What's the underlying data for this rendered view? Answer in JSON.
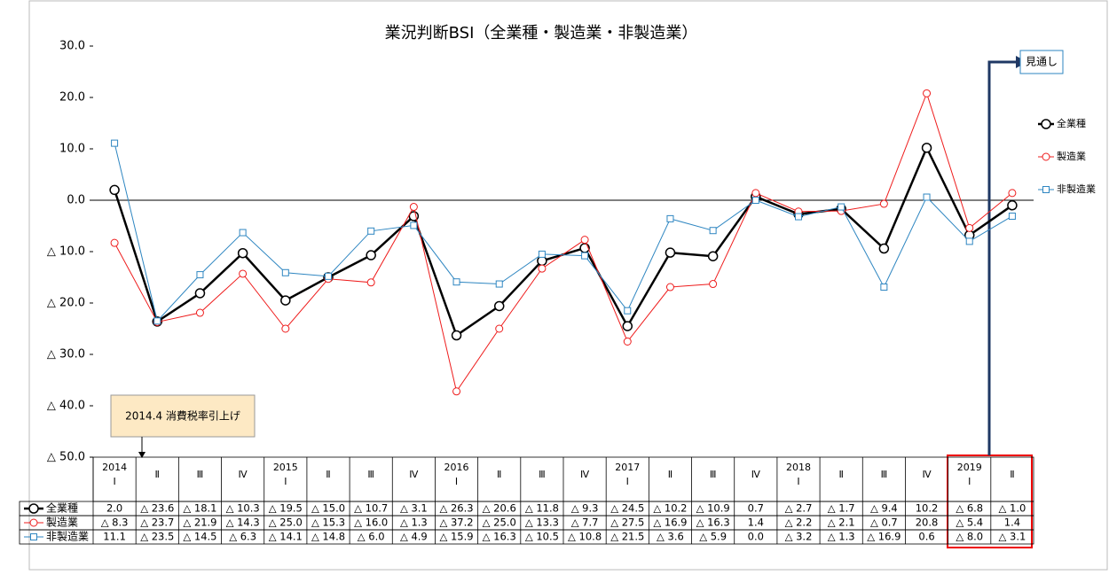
{
  "chart_data": {
    "type": "line",
    "title": "業況判断BSI（全業種・製造業・非製造業）",
    "years": [
      "2014",
      null,
      null,
      null,
      "2015",
      null,
      null,
      null,
      "2016",
      null,
      null,
      null,
      "2017",
      null,
      null,
      null,
      "2018",
      null,
      null,
      null,
      "2019",
      null
    ],
    "categories": [
      "I",
      "Ⅱ",
      "Ⅲ",
      "Ⅳ",
      "I",
      "Ⅱ",
      "Ⅲ",
      "Ⅳ",
      "I",
      "Ⅱ",
      "Ⅲ",
      "Ⅳ",
      "I",
      "Ⅱ",
      "Ⅲ",
      "Ⅳ",
      "I",
      "Ⅱ",
      "Ⅲ",
      "Ⅳ",
      "I",
      "Ⅱ"
    ],
    "series": [
      {
        "name": "全業種",
        "color": "#000000",
        "marker": "circle",
        "values": [
          2.0,
          -23.6,
          -18.1,
          -10.3,
          -19.5,
          -15.0,
          -10.7,
          -3.1,
          -26.3,
          -20.6,
          -11.8,
          -9.3,
          -24.5,
          -10.2,
          -10.9,
          0.7,
          -2.7,
          -1.7,
          -9.4,
          10.2,
          -6.8,
          -1.0
        ],
        "value_labels": [
          "2.0",
          "△ 23.6",
          "△ 18.1",
          "△ 10.3",
          "△ 19.5",
          "△ 15.0",
          "△ 10.7",
          "△ 3.1",
          "△ 26.3",
          "△ 20.6",
          "△ 11.8",
          "△ 9.3",
          "△ 24.5",
          "△ 10.2",
          "△ 10.9",
          "0.7",
          "△ 2.7",
          "△ 1.7",
          "△ 9.4",
          "10.2",
          "△ 6.8",
          "△ 1.0"
        ]
      },
      {
        "name": "製造業",
        "color": "#ee1c1c",
        "marker": "circle",
        "values": [
          -8.3,
          -23.7,
          -21.9,
          -14.3,
          -25.0,
          -15.3,
          -16.0,
          -1.3,
          -37.2,
          -25.0,
          -13.3,
          -7.7,
          -27.5,
          -16.9,
          -16.3,
          1.4,
          -2.2,
          -2.1,
          -0.7,
          20.8,
          -5.4,
          1.4
        ],
        "value_labels": [
          "△ 8.3",
          "△ 23.7",
          "△ 21.9",
          "△ 14.3",
          "△ 25.0",
          "△ 15.3",
          "△ 16.0",
          "△ 1.3",
          "△ 37.2",
          "△ 25.0",
          "△ 13.3",
          "△ 7.7",
          "△ 27.5",
          "△ 16.9",
          "△ 16.3",
          "1.4",
          "△ 2.2",
          "△ 2.1",
          "△ 0.7",
          "20.8",
          "△ 5.4",
          "1.4"
        ]
      },
      {
        "name": "非製造業",
        "color": "#2e86c1",
        "marker": "square",
        "values": [
          11.1,
          -23.5,
          -14.5,
          -6.3,
          -14.1,
          -14.8,
          -6.0,
          -4.9,
          -15.9,
          -16.3,
          -10.5,
          -10.8,
          -21.5,
          -3.6,
          -5.9,
          0.0,
          -3.2,
          -1.3,
          -16.9,
          0.6,
          -8.0,
          -3.1
        ],
        "value_labels": [
          "11.1",
          "△ 23.5",
          "△ 14.5",
          "△ 6.3",
          "△ 14.1",
          "△ 14.8",
          "△ 6.0",
          "△ 4.9",
          "△ 15.9",
          "△ 16.3",
          "△ 10.5",
          "△ 10.8",
          "△ 21.5",
          "△ 3.6",
          "△ 5.9",
          "0.0",
          "△ 3.2",
          "△ 1.3",
          "△ 16.9",
          "0.6",
          "△ 8.0",
          "△ 3.1"
        ]
      }
    ],
    "ylim": [
      -50,
      30
    ],
    "yticks": [
      {
        "value": 30,
        "label": "30.0"
      },
      {
        "value": 20,
        "label": "20.0"
      },
      {
        "value": 10,
        "label": "10.0"
      },
      {
        "value": 0,
        "label": "0.0"
      },
      {
        "value": -10,
        "label": "△ 10.0"
      },
      {
        "value": -20,
        "label": "△ 20.0"
      },
      {
        "value": -30,
        "label": "△ 30.0"
      },
      {
        "value": -40,
        "label": "△ 40.0"
      },
      {
        "value": -50,
        "label": "△ 50.0"
      }
    ],
    "annotations": [
      "2014.4 消費税率引上げ",
      "見通し"
    ]
  }
}
